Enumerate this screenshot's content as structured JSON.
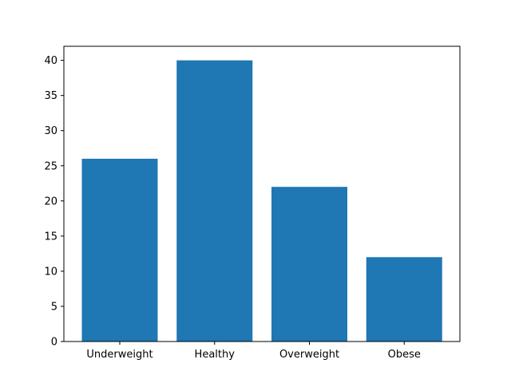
{
  "chart_data": {
    "type": "bar",
    "categories": [
      "Underweight",
      "Healthy",
      "Overweight",
      "Obese"
    ],
    "values": [
      26,
      40,
      22,
      12
    ],
    "ylim": [
      0,
      42
    ],
    "yticks": [
      0,
      5,
      10,
      15,
      20,
      25,
      30,
      35,
      40
    ],
    "title": "",
    "xlabel": "",
    "ylabel": "",
    "grid": false,
    "bar_color": "#1f77b4"
  }
}
